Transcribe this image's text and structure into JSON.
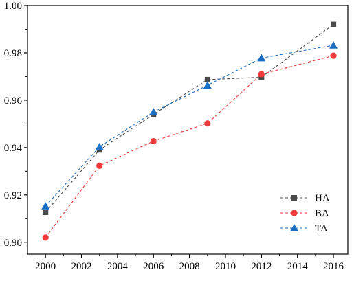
{
  "chart_data": {
    "type": "line",
    "title": "",
    "xlabel": "",
    "ylabel": "",
    "x": [
      2000,
      2003,
      2006,
      2009,
      2012,
      2016
    ],
    "xlim": [
      1999,
      2016.8
    ],
    "ylim": [
      0.895,
      1.0
    ],
    "xticks": [
      2000,
      2002,
      2004,
      2006,
      2008,
      2010,
      2012,
      2014,
      2016
    ],
    "xtick_labels": [
      "2000",
      "2002",
      "2004",
      "2006",
      "2008",
      "2010",
      "2012",
      "2014",
      "2016"
    ],
    "yticks": [
      0.9,
      0.92,
      0.94,
      0.96,
      0.98,
      1.0
    ],
    "ytick_labels": [
      "0.90",
      "0.92",
      "0.94",
      "0.96",
      "0.98",
      "1.00"
    ],
    "grid": false,
    "legend_position": "bottom-right",
    "series": [
      {
        "name": "HA",
        "marker": "square",
        "color": "#4a4a4a",
        "values": [
          0.9127,
          0.939,
          0.954,
          0.9687,
          0.9697,
          0.992
        ]
      },
      {
        "name": "BA",
        "marker": "circle",
        "color": "#ef3b3b",
        "values": [
          0.902,
          0.9323,
          0.9427,
          0.9502,
          0.971,
          0.9788
        ]
      },
      {
        "name": "TA",
        "marker": "triangle",
        "color": "#1a6fc4",
        "values": [
          0.9153,
          0.9403,
          0.955,
          0.9663,
          0.9778,
          0.9832
        ]
      }
    ]
  }
}
